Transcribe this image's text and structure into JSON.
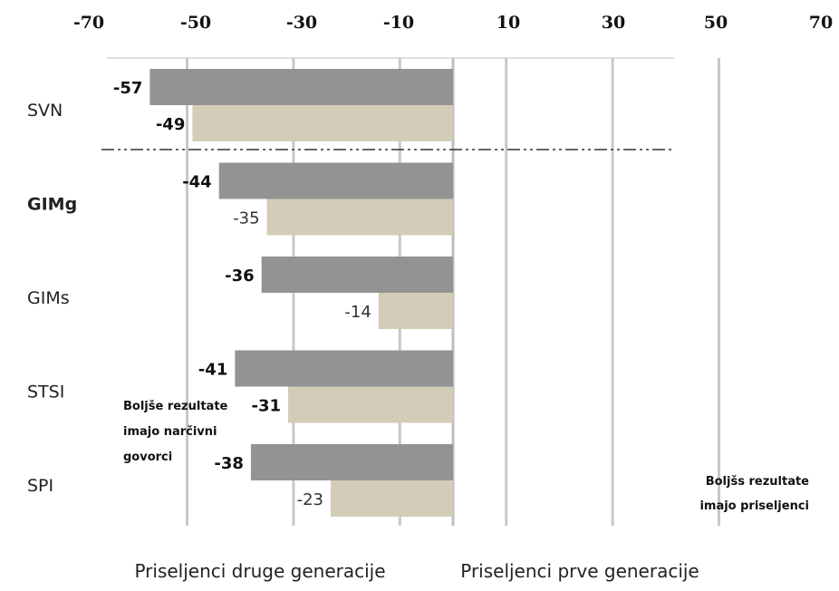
{
  "chart_data": {
    "type": "bar",
    "orientation": "horizontal",
    "categories": [
      "SVN",
      "GIMg",
      "GIMs",
      "STSI",
      "SPI"
    ],
    "bold_categories": [
      "GIMg"
    ],
    "series": [
      {
        "name": "Priseljenci prve generacije",
        "values": [
          -57,
          -44,
          -36,
          -41,
          -38
        ],
        "color": "#939393",
        "bold_labels": true
      },
      {
        "name": "Priseljenci druge generacije",
        "values": [
          -49,
          -35,
          -14,
          -31,
          -23
        ],
        "color": "#d3ccb9",
        "bold_labels": false
      }
    ],
    "data_labels": [
      [
        "-57",
        "-44",
        "-36",
        "-41",
        "-38"
      ],
      [
        "-49",
        "-35",
        "-14",
        "-31",
        "-23"
      ]
    ],
    "bold_second_labels": [
      "-49",
      "-31"
    ],
    "xticks": [
      -70,
      -50,
      -30,
      -10,
      10,
      30,
      50,
      70
    ],
    "xtick_labels": [
      "-70",
      "-50",
      "-30",
      "-10",
      "10",
      "30",
      "50",
      "70"
    ],
    "xlim": [
      -70,
      70
    ],
    "axis_position": "top",
    "grid": true,
    "separator_after_category": "SVN",
    "annotations": {
      "left": [
        "Boljše rezultate",
        "imajo narčivni",
        "govorci"
      ],
      "right": [
        "Boljšs rezultate",
        "imajo priseljenci"
      ]
    },
    "bottom_labels": {
      "left": "Priseljenci druge generacije",
      "right": "Priseljenci prve generacije"
    }
  }
}
